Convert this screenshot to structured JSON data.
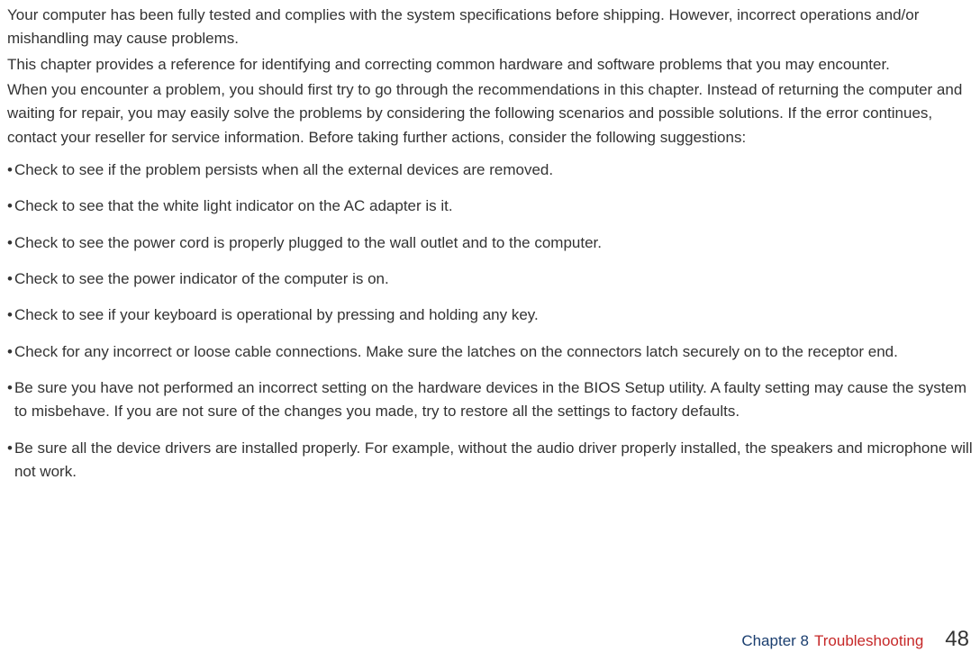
{
  "intro": {
    "p1": "Your computer has been fully tested and complies with the system specifications before shipping. However, incorrect operations and/or mishandling may cause problems.",
    "p2": "This chapter provides a reference for identifying and correcting common hardware and software problems that you may encounter.",
    "p3": "When you encounter a problem, you should first try to go through the recommendations in this chapter. Instead of returning the computer and waiting for repair, you may easily solve the problems by considering the following scenarios and possible solutions. If the error continues, contact your reseller for service information. Before taking further actions, consider the following suggestions:"
  },
  "bullets": [
    "Check to see if the problem persists when all the external devices are removed.",
    "Check to see that the white light indicator on the AC adapter is it.",
    "Check to see the power cord is properly plugged to the wall outlet and to the computer.",
    "Check to see the power indicator of the computer is on.",
    "Check to see if your keyboard is operational by pressing and holding any key.",
    "Check for any incorrect or loose cable connections. Make sure the latches on the connectors latch securely on to the receptor end.",
    "Be sure you have not performed an incorrect setting on the hardware devices in the BIOS Setup utility. A faulty setting may cause the system to misbehave. If you are not sure of the changes you made, try to restore all the settings to factory defaults.",
    "Be sure all the device drivers are installed properly. For example, without the audio driver properly installed, the speakers and microphone will not work."
  ],
  "footer": {
    "chapter_label": "Chapter 8",
    "chapter_title": "Troubleshooting",
    "page_number": "48"
  }
}
